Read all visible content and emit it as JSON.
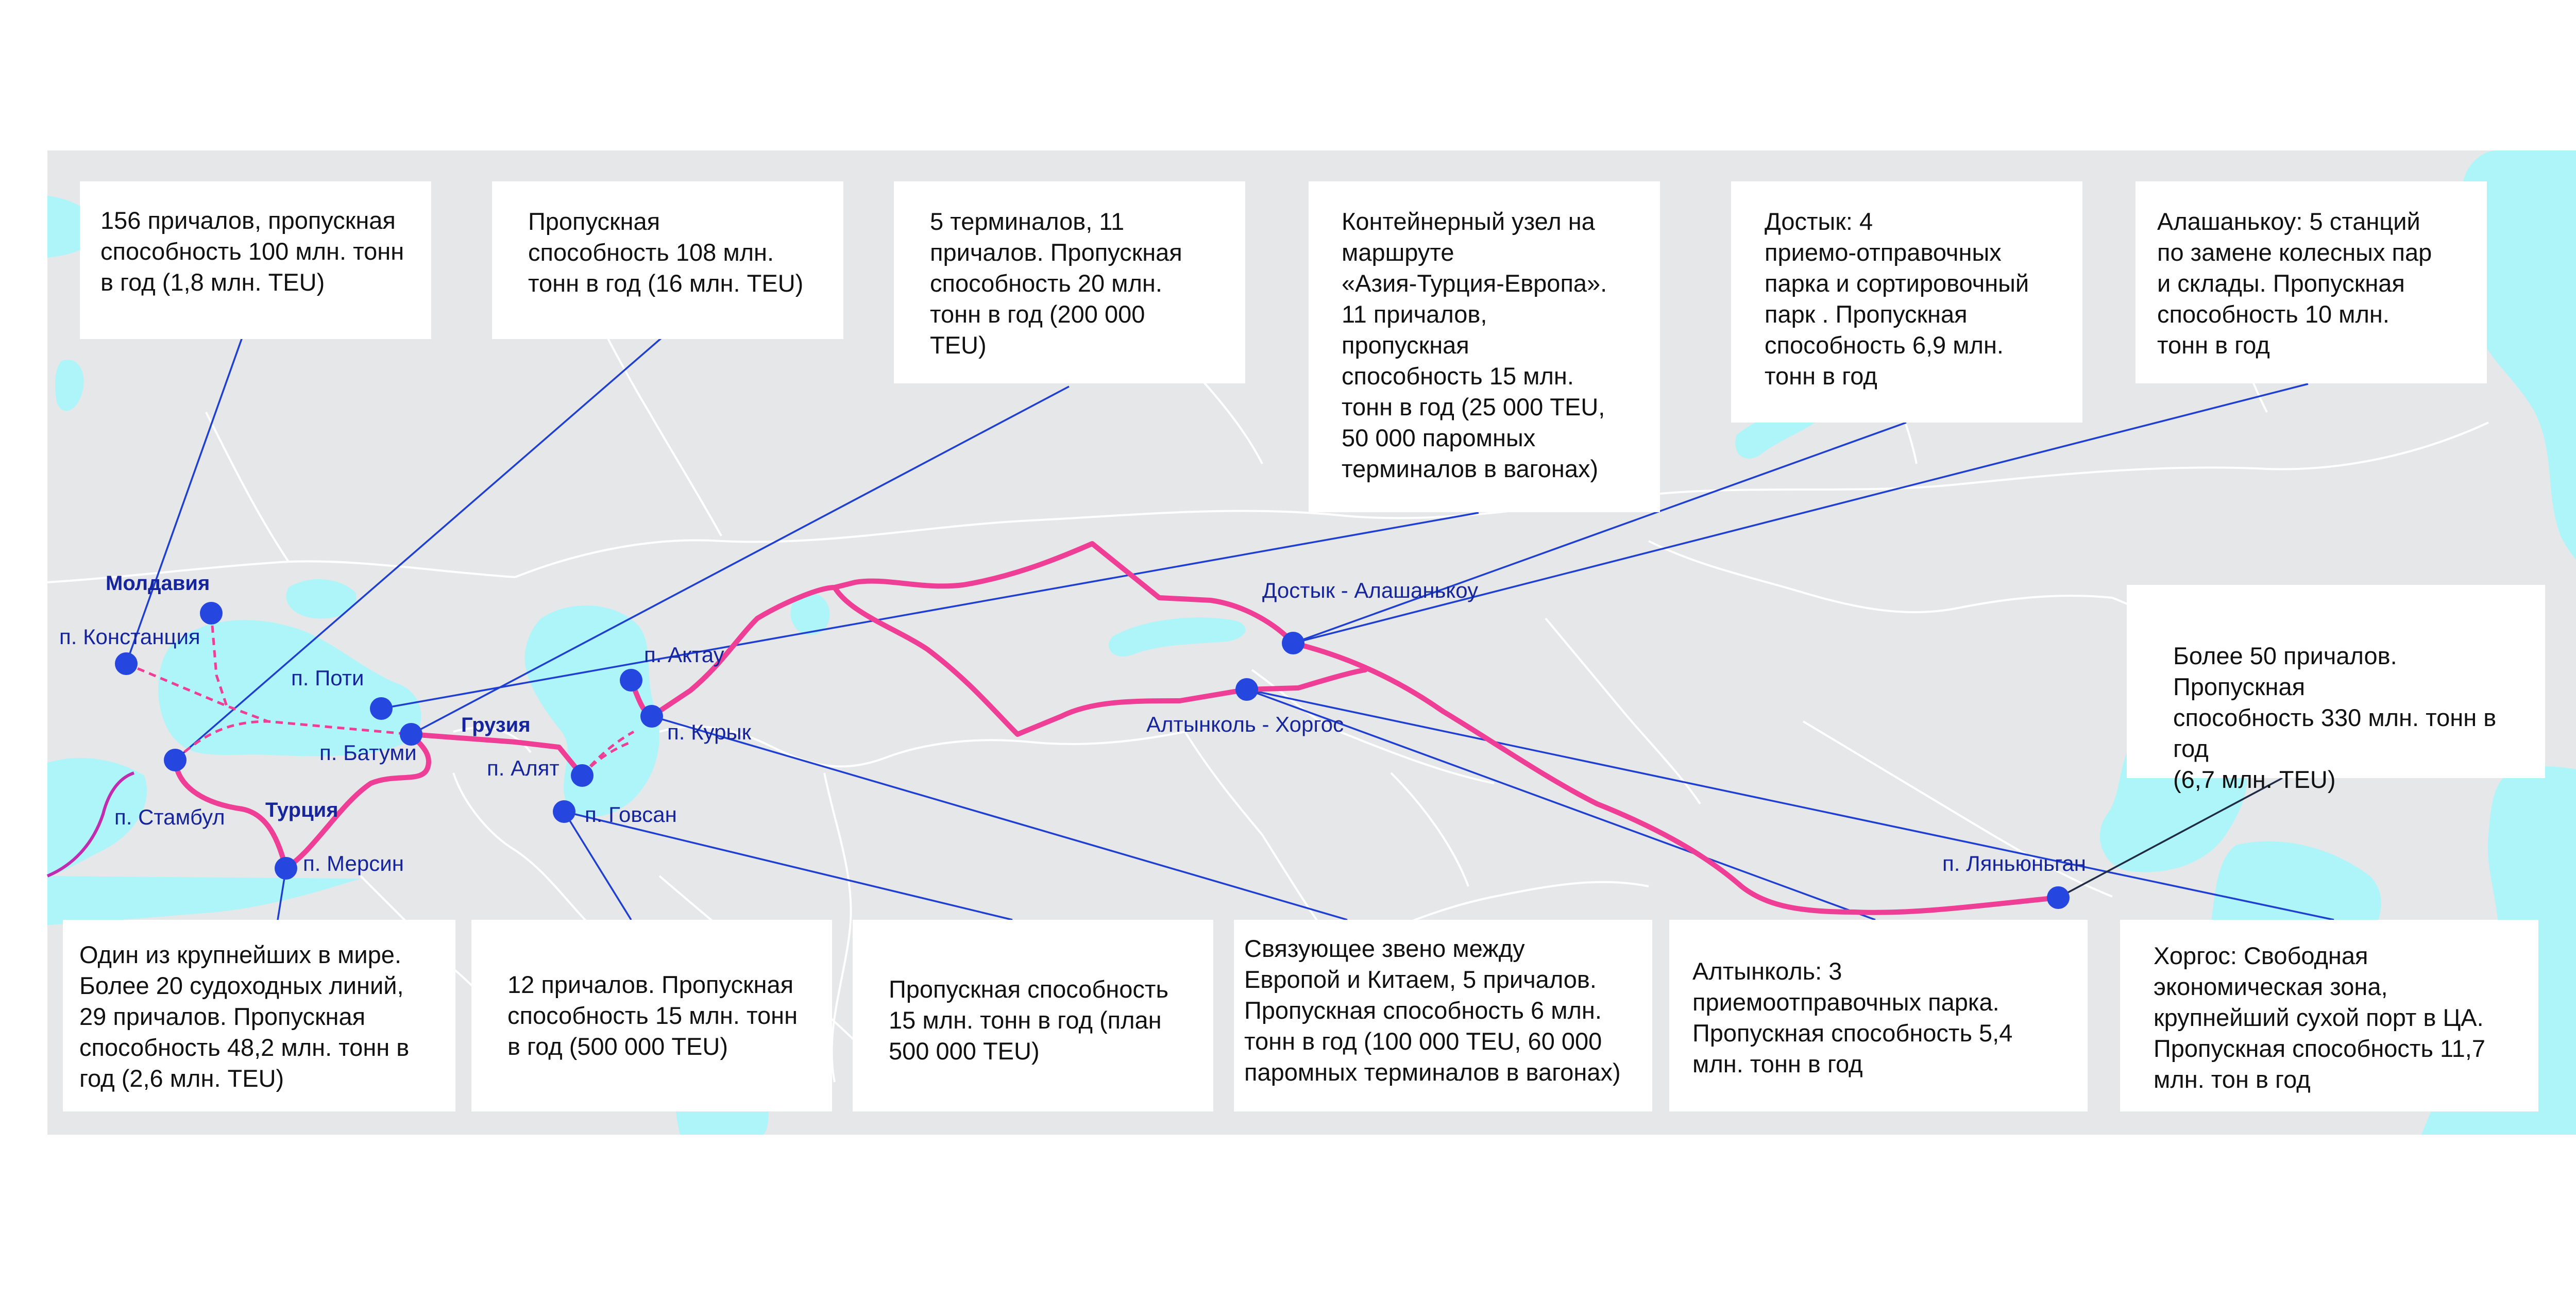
{
  "colors": {
    "land": "#e6e7e8",
    "water": "#aef5fa",
    "border": "#ffffff",
    "route": "#ee3e95",
    "connector": "#1f3fd0",
    "node": "#2646e0",
    "label": "#16259c"
  },
  "countries": {
    "moldova": "Молдавия",
    "georgia": "Грузия",
    "turkey": "Турция"
  },
  "nodes": {
    "constanta": "п. Констанция",
    "poti": "п. Поти",
    "batumi": "п. Батуми",
    "istanbul": "п. Стамбул",
    "mersin": "п. Мерсин",
    "alat": "п. Алят",
    "aktau": "п. Актау",
    "kuryk": "п. Курык",
    "govsan": "п. Говсан",
    "dostyk": "Достык - Алашанькоу",
    "altynkol": "Алтынколь - Хоргос",
    "lianyungang": "п. Ляньюньган"
  },
  "boxes": {
    "constanta_info": "156 причалов, пропускная\nспособность 100 млн. тонн\nв год (1,8 млн. TEU)",
    "poti_info": "Пропускная\nспособность 108 млн.\nтонн в год (16 млн. TEU)",
    "batumi_info": "5 терминалов, 11\nпричалов. Пропускная\nспособность 20 млн.\nтонн в год (200 000\nTEU)",
    "alat_info": "Контейнерный узел на\nмаршруте\n«Азия-Турция-Европа».\n11 причалов,\nпропускная\nспособность 15 млн.\nтонн в год (25 000 TEU,\n50 000 паромных\nтерминалов в вагонах)",
    "dostyk_info": "Достык: 4\nприемо-отправочных\nпарка и сортировочный\nпарк . Пропускная\nспособность 6,9 млн.\nтонн в год",
    "alashankou_info": "Алашанькоу: 5 станций\nпо замене колесных пар\nи склады. Пропускная\nспособность 10 млн.\nтонн в год",
    "lianyungang_info": "Более 50 причалов. Пропускная\nспособность 330 млн. тонн в год\n(6,7 млн. TEU)",
    "istanbul_info": "Один из крупнейших в мире.\nБолее 20 судоходных линий,\n29 причалов. Пропускная\nспособность 48,2 млн. тонн в\nгод (2,6 млн. TEU)",
    "govsan_info": "12 причалов. Пропускная\nспособность 15 млн. тонн\nв год (500 000 TEU)",
    "kuryk_info": "Пропускная способность\n15 млн. тонн в год (план\n500 000 TEU)",
    "aktau_info": "Связующее звено между\nЕвропой и Китаем, 5 причалов.\nПропускная способность 6 млн.\nтонн в год (100 000 TEU, 60 000\nпаромных терминалов в вагонах)",
    "altynkol_info": "Алтынколь: 3\nприемоотправочных парка.\nПропускная способность 5,4\nмлн. тонн в год",
    "khorgos_info": "Хоргос: Свободная\nэкономическая зона,\nкрупнейший сухой порт в ЦА.\nПропускная способность 11,7\nмлн. тон в год"
  }
}
